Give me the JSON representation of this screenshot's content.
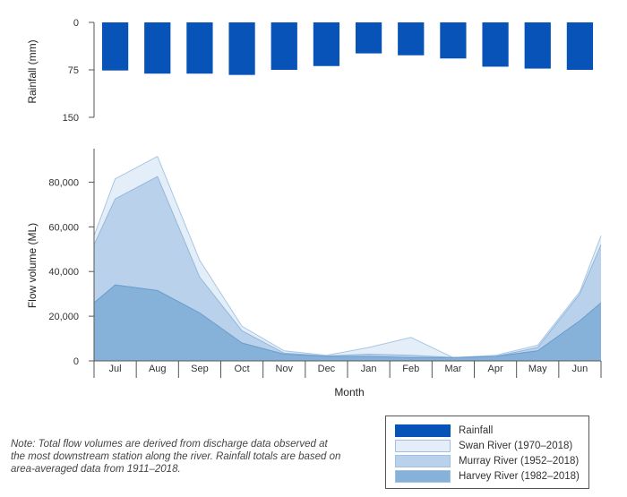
{
  "chart_data": {
    "type": "bar+area",
    "categories": [
      "Jul",
      "Aug",
      "Sep",
      "Oct",
      "Nov",
      "Dec",
      "Jan",
      "Feb",
      "Mar",
      "Apr",
      "May",
      "Jun"
    ],
    "xlabel": "Month",
    "rainfall": {
      "name": "Rainfall",
      "ylabel": "Rainfall (mm)",
      "ylim": [
        0,
        150
      ],
      "yticks": [
        0,
        75,
        150
      ],
      "ytick_labels": [
        "0",
        "75",
        "150"
      ],
      "axis_inverted": true,
      "color": "#0753b8",
      "values": [
        76,
        81,
        81,
        83,
        75,
        69,
        49,
        52,
        57,
        70,
        73,
        75
      ]
    },
    "flow": {
      "ylabel": "Flow volume (ML)",
      "ylim": [
        0,
        95000
      ],
      "yticks": [
        0,
        20000,
        40000,
        60000,
        80000
      ],
      "ytick_labels": [
        "0",
        "20,000",
        "40,000",
        "60,000",
        "80,000"
      ],
      "x": [
        -0.5,
        0,
        1,
        2,
        3,
        4,
        5,
        6,
        7,
        8,
        9,
        10,
        11,
        11.5
      ],
      "series": [
        {
          "name": "Swan River (1970–2018)",
          "color": "#e3eef8",
          "stroke": "#a8c6e3",
          "values": [
            56000,
            81500,
            91500,
            45000,
            15500,
            4500,
            2500,
            6000,
            10500,
            1500,
            2500,
            7000,
            31000,
            56000
          ]
        },
        {
          "name": "Murray River (1952–2018)",
          "color": "#b9d1eb",
          "stroke": "#94b8dc",
          "values": [
            52000,
            72500,
            82500,
            37500,
            13500,
            3500,
            2200,
            3000,
            2500,
            1500,
            2000,
            6000,
            30000,
            52000
          ]
        },
        {
          "name": "Harvey River (1982–2018)",
          "color": "#86b2d9",
          "stroke": "#6b9dcc",
          "values": [
            26000,
            34000,
            31500,
            21500,
            8000,
            3000,
            2000,
            2000,
            1500,
            1500,
            2000,
            4500,
            18000,
            26000
          ]
        }
      ]
    }
  },
  "legend": {
    "items": [
      {
        "label": "Rainfall",
        "color": "#0753b8"
      },
      {
        "label": "Swan River (1970–2018)",
        "color": "#e3eef8"
      },
      {
        "label": "Murray River (1952–2018)",
        "color": "#b9d1eb"
      },
      {
        "label": "Harvey River (1982–2018)",
        "color": "#86b2d9"
      }
    ]
  },
  "note": "Note: Total flow volumes are derived from discharge data observed at the most downstream station along the river. Rainfall totals are based on area-averaged data from 1911–2018."
}
